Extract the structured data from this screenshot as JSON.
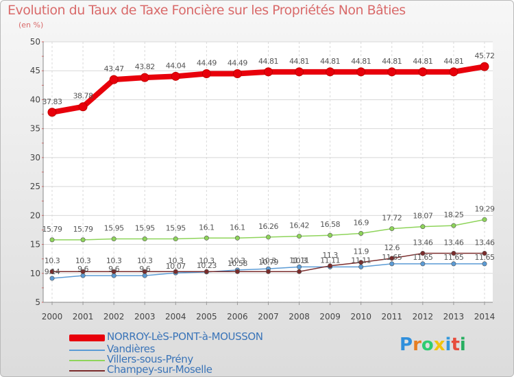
{
  "chart_data": {
    "type": "line",
    "title": "Evolution du Taux de Taxe Foncière sur les Propriétés Non Bâties",
    "unit_label": "(en %)",
    "x": [
      "2000",
      "2001",
      "2002",
      "2003",
      "2004",
      "2005",
      "2006",
      "2007",
      "2008",
      "2009",
      "2010",
      "2011",
      "2012",
      "2013",
      "2014"
    ],
    "ylim": [
      5,
      50
    ],
    "yticks": [
      5,
      10,
      15,
      20,
      25,
      30,
      35,
      40,
      45,
      50
    ],
    "series": [
      {
        "name": "NORROY-LèS-PONT-à-MOUSSON",
        "color": "#e8000b",
        "values": [
          37.83,
          38.78,
          43.47,
          43.82,
          44.04,
          44.49,
          44.49,
          44.81,
          44.81,
          44.81,
          44.81,
          44.81,
          44.81,
          44.81,
          45.72
        ],
        "labels": [
          "37.83",
          "38.78",
          "43.47",
          "43.82",
          "44.04",
          "44.49",
          "44.49",
          "44.81",
          "44.81",
          "44.81",
          "44.81",
          "44.81",
          "44.81",
          "44.81",
          "45.72"
        ]
      },
      {
        "name": "Vandières",
        "color": "#5b9bd5",
        "values": [
          9.14,
          9.6,
          9.6,
          9.6,
          10.07,
          10.23,
          10.58,
          10.79,
          11.11,
          11.11,
          11.11,
          11.65,
          11.65,
          11.65,
          11.65
        ],
        "labels": [
          "9.14",
          "9.6",
          "9.6",
          "9.6",
          "10.07",
          "10.23",
          "10.58",
          "10.79",
          "11.11",
          "11.11",
          "11.11",
          "11.65",
          "11.65",
          "11.65",
          "11.65"
        ]
      },
      {
        "name": "Villers-sous-Prény",
        "color": "#8ed45a",
        "values": [
          15.79,
          15.79,
          15.95,
          15.95,
          15.95,
          16.1,
          16.1,
          16.26,
          16.42,
          16.58,
          16.9,
          17.72,
          18.07,
          18.25,
          19.29
        ],
        "labels": [
          "15.79",
          "15.79",
          "15.95",
          "15.95",
          "15.95",
          "16.1",
          "16.1",
          "16.26",
          "16.42",
          "16.58",
          "16.9",
          "17.72",
          "18.07",
          "18.25",
          "19.29"
        ]
      },
      {
        "name": "Champey-sur-Moselle",
        "color": "#7a2b2b",
        "values": [
          10.3,
          10.3,
          10.3,
          10.3,
          10.3,
          10.3,
          10.3,
          10.3,
          10.3,
          11.3,
          11.9,
          12.6,
          13.46,
          13.46,
          13.46
        ],
        "labels": [
          "10.3",
          "10.3",
          "10.3",
          "10.3",
          "10.3",
          "10.3",
          "10.3",
          "10.3",
          "10.3",
          "11.3",
          "11.9",
          "12.6",
          "13.46",
          "13.46",
          "13.46"
        ]
      }
    ]
  },
  "logo": {
    "letters": [
      "P",
      "r",
      "o",
      "x",
      "i",
      "t",
      "i"
    ],
    "colors": [
      "#2f8fdc",
      "#e67e22",
      "#2ecc71",
      "#f1c40f",
      "#3498db",
      "#e74c3c",
      "#27ae60"
    ]
  }
}
